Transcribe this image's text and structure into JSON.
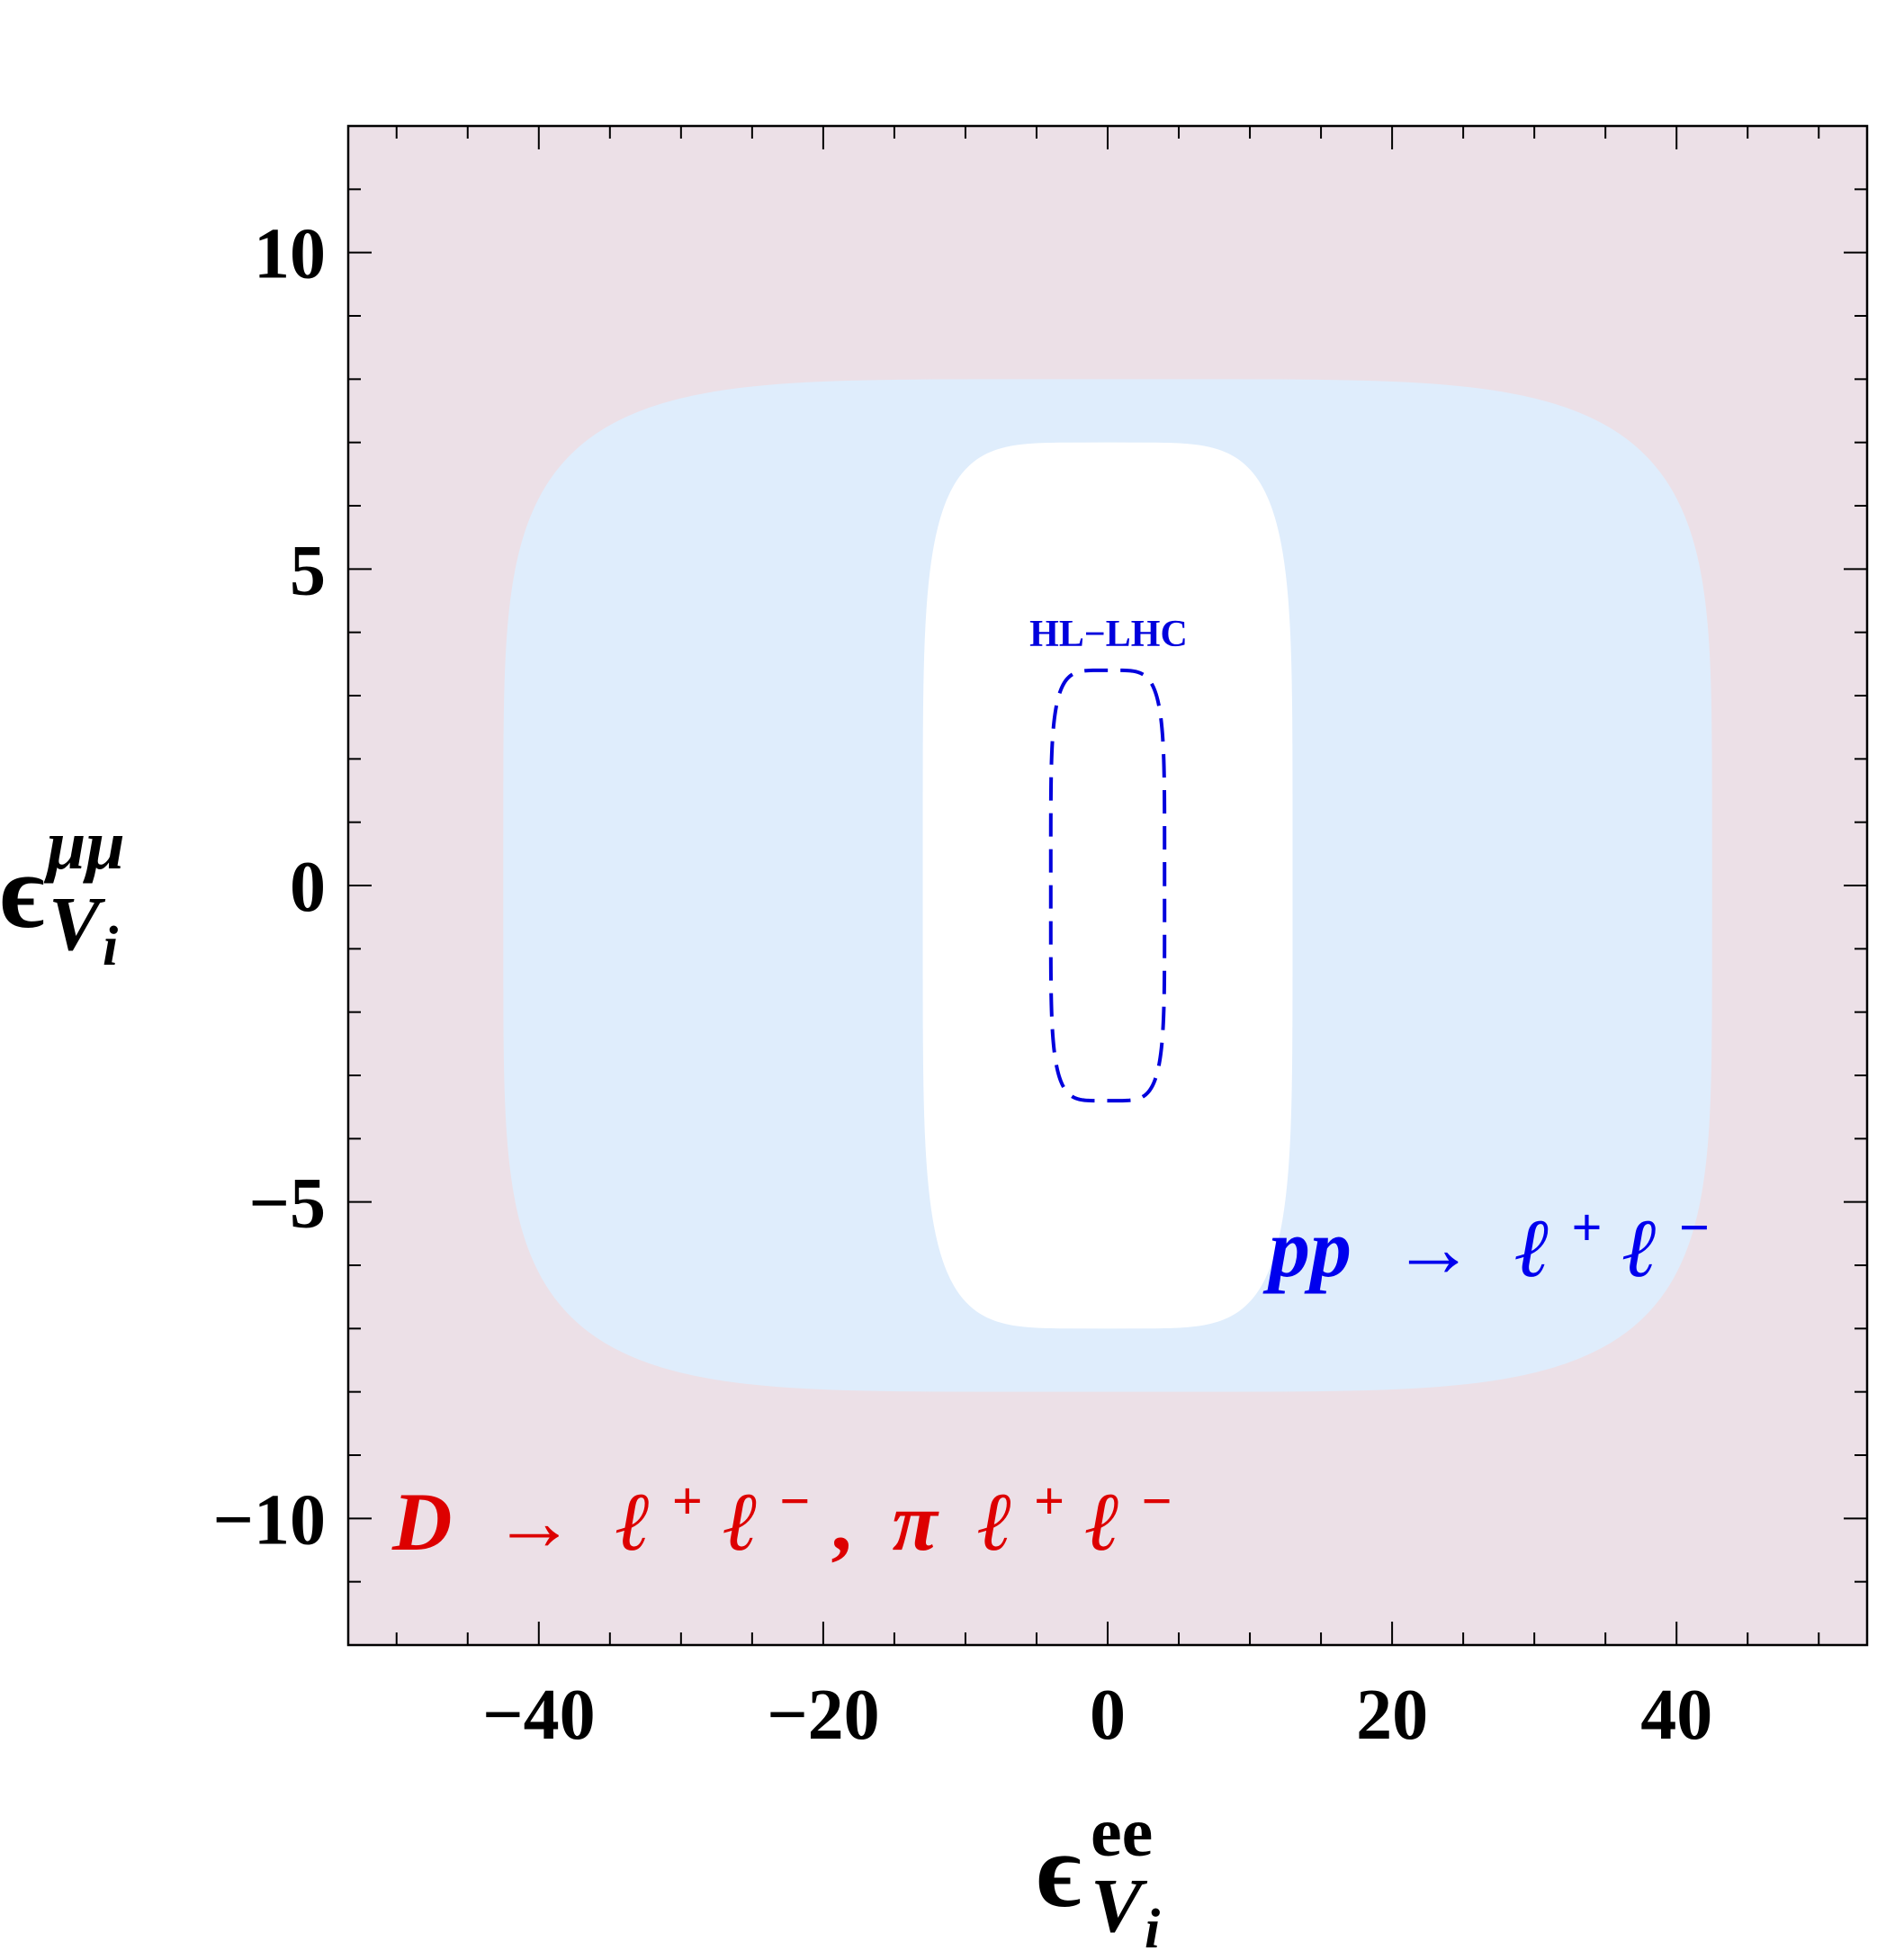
{
  "chart_data": {
    "type": "area",
    "xlabel": {
      "symbol": "ϵ",
      "sub": "V",
      "subsub": "i",
      "sup": "ee"
    },
    "ylabel": {
      "symbol": "ϵ",
      "sub": "V",
      "subsub": "i",
      "sup": "μμ"
    },
    "xlim": [
      -53.4,
      53.4
    ],
    "ylim": [
      -12,
      12
    ],
    "x_ticks": [
      {
        "value": -40,
        "label": "−40"
      },
      {
        "value": -20,
        "label": "−20"
      },
      {
        "value": 0,
        "label": "0"
      },
      {
        "value": 20,
        "label": "20"
      },
      {
        "value": 40,
        "label": "40"
      }
    ],
    "y_ticks": [
      {
        "value": -10,
        "label": "−10"
      },
      {
        "value": -5,
        "label": "−5"
      },
      {
        "value": 0,
        "label": "0"
      },
      {
        "value": 5,
        "label": "5"
      },
      {
        "value": 10,
        "label": "10"
      }
    ],
    "x_minor_step": 5,
    "y_minor_step": 1,
    "grid": false,
    "colors": {
      "d_region": "#ece0e7",
      "pp_region": "#dfedfc",
      "allowed": "#ffffff",
      "hl_lhc": "#0000dd",
      "pp_label": "#0000ee",
      "d_label": "#dd0000",
      "hl_label": "#0000dd"
    },
    "regions": [
      {
        "name": "D → ℓ+ℓ−, π ℓ+ℓ−",
        "label_parts": {
          "main": "D",
          "arrow": "→",
          "l": "ℓ",
          "plus": "+",
          "minus": "−",
          "comma": ",",
          "pi": "π"
        },
        "shape": "full-plane",
        "x_range": [
          -53.4,
          53.4
        ],
        "y_range": [
          -12,
          12
        ]
      },
      {
        "name": "pp → ℓ+ℓ−",
        "label_parts": {
          "main": "pp",
          "arrow": "→",
          "l": "ℓ",
          "plus": "+",
          "minus": "−"
        },
        "shape": "superellipse",
        "x_half_width": 42.5,
        "y_half_height": 8.0,
        "exponent": 5
      },
      {
        "name": "allowed",
        "shape": "superellipse",
        "x_half_width": 13.0,
        "y_half_height": 7.0,
        "exponent": 5
      }
    ],
    "contours": [
      {
        "name": "HL−LHC",
        "label": "HL−LHC",
        "style": "dashed",
        "shape": "superellipse",
        "x_half_width": 4.0,
        "y_half_height": 3.4,
        "exponent": 5
      }
    ]
  }
}
